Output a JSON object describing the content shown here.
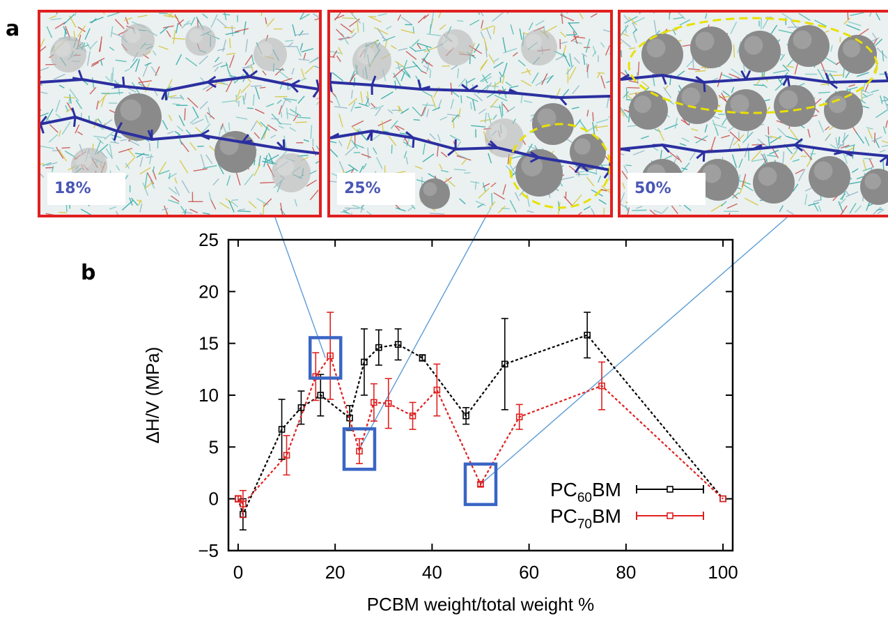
{
  "panel_a_label": "a",
  "panel_b_label": "b",
  "snapshots": [
    {
      "label": "18%",
      "weight_percent": 18
    },
    {
      "label": "25%",
      "weight_percent": 25
    },
    {
      "label": "50%",
      "weight_percent": 50
    }
  ],
  "colors": {
    "frame": "#e02020",
    "highlight_box": "#3a66c4",
    "connector": "#5b9bd5",
    "pc60bm": "#000000",
    "pc70bm": "#e02020",
    "polymer_chain": "#2b2fa0",
    "fullerene": "#8a8a8a",
    "cluster_outline": "#e8e000"
  },
  "chart_data": {
    "type": "line",
    "xlabel": "PCBM weight/total weight %",
    "ylabel": "ΔH/V (MPa)",
    "xlim": [
      -2,
      102
    ],
    "ylim": [
      -5,
      25
    ],
    "xticks": [
      0,
      20,
      40,
      60,
      80,
      100
    ],
    "yticks": [
      -5,
      0,
      5,
      10,
      15,
      20,
      25
    ],
    "xtick_labels": [
      "0",
      "20",
      "40",
      "60",
      "80",
      "100"
    ],
    "ytick_labels": [
      "−5",
      "0",
      "5",
      "10",
      "15",
      "20",
      "25"
    ],
    "legend_position": "bottom-right",
    "series": [
      {
        "name": "PC60BM",
        "legend_main": "PC",
        "legend_sub": "60",
        "legend_tail": "BM",
        "color": "#000000",
        "points": [
          {
            "x": 0,
            "y": 0,
            "err": 0
          },
          {
            "x": 1,
            "y": -1.5,
            "err": 1.5
          },
          {
            "x": 9,
            "y": 6.7,
            "err": 2.9
          },
          {
            "x": 13,
            "y": 8.8,
            "err": 1.6
          },
          {
            "x": 17,
            "y": 10,
            "err": 2
          },
          {
            "x": 23,
            "y": 7.8,
            "err": 1.2
          },
          {
            "x": 26,
            "y": 13.2,
            "err": 3.2
          },
          {
            "x": 29,
            "y": 14.6,
            "err": 1.7
          },
          {
            "x": 33,
            "y": 14.9,
            "err": 1.5
          },
          {
            "x": 38,
            "y": 13.6,
            "err": 0.3
          },
          {
            "x": 47,
            "y": 8,
            "err": 0.8
          },
          {
            "x": 55,
            "y": 13,
            "err": 4.4
          },
          {
            "x": 72,
            "y": 15.8,
            "err": 2.2
          },
          {
            "x": 100,
            "y": 0,
            "err": 0
          }
        ]
      },
      {
        "name": "PC70BM",
        "legend_main": "PC",
        "legend_sub": "70",
        "legend_tail": "BM",
        "color": "#e02020",
        "points": [
          {
            "x": 0,
            "y": 0,
            "err": 0.3
          },
          {
            "x": 1,
            "y": -0.5,
            "err": 1.3
          },
          {
            "x": 10,
            "y": 4.2,
            "err": 1.9
          },
          {
            "x": 16,
            "y": 11.8,
            "err": 2.3
          },
          {
            "x": 19,
            "y": 13.8,
            "err": 4.2
          },
          {
            "x": 25,
            "y": 4.6,
            "err": 1.2
          },
          {
            "x": 28,
            "y": 9.3,
            "err": 1.8
          },
          {
            "x": 31,
            "y": 9.2,
            "err": 2.4
          },
          {
            "x": 36,
            "y": 8,
            "err": 1.3
          },
          {
            "x": 41,
            "y": 10.5,
            "err": 2.5
          },
          {
            "x": 50,
            "y": 1.4,
            "err": 0.2
          },
          {
            "x": 58,
            "y": 7.9,
            "err": 1.2
          },
          {
            "x": 75,
            "y": 10.9,
            "err": 2.3
          },
          {
            "x": 100,
            "y": 0,
            "err": 0
          }
        ]
      }
    ],
    "highlight_boxes": [
      {
        "x": 18,
        "y": 13.6,
        "links_to": "18%"
      },
      {
        "x": 25,
        "y": 4.8,
        "links_to": "25%"
      },
      {
        "x": 50,
        "y": 1.4,
        "links_to": "50%"
      }
    ]
  }
}
